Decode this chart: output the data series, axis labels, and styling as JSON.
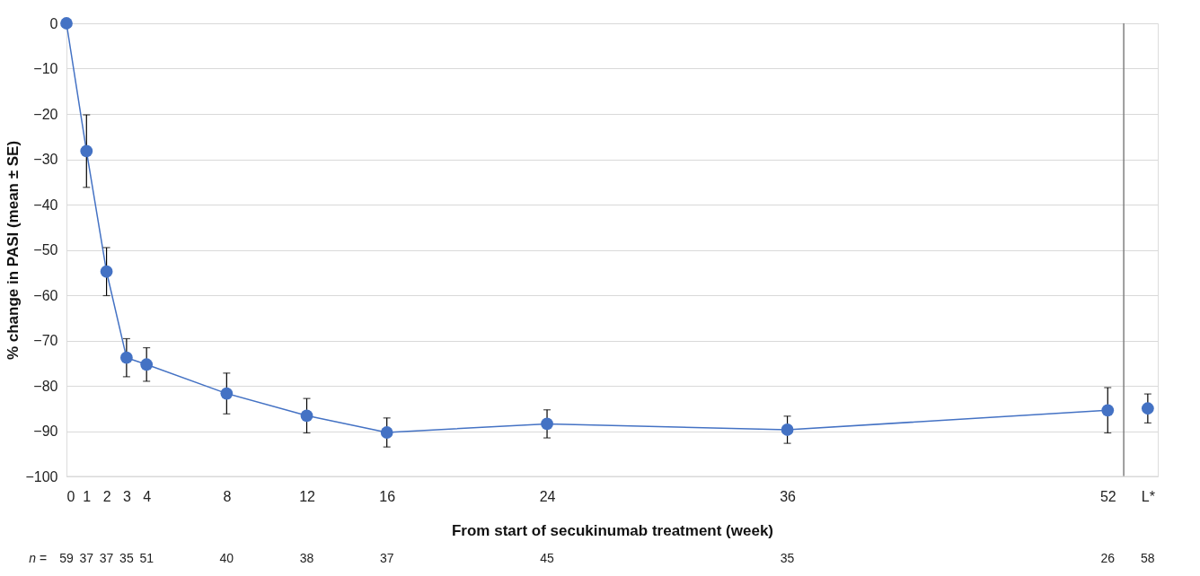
{
  "chart_data": {
    "type": "line",
    "xlabel": "From start of secukinumab treatment (week)",
    "ylabel": "% change in PASI (mean ± SE)",
    "xlim": [
      0,
      54.5
    ],
    "xticks": [
      0,
      1,
      2,
      3,
      4,
      8,
      12,
      16,
      24,
      36,
      52,
      {
        "value": 54,
        "label": "L*"
      }
    ],
    "ylim": [
      -100,
      0
    ],
    "yticks": [
      -100,
      -90,
      -80,
      -70,
      -60,
      -50,
      -40,
      -30,
      -20,
      -10,
      0
    ],
    "grid": "y",
    "marker": "circle",
    "line_style": "solid",
    "series": [
      {
        "color": "#4472c4",
        "x": [
          0,
          1,
          2,
          3,
          4,
          8,
          12,
          16,
          24,
          36,
          52
        ],
        "values": [
          0,
          -28.2,
          -54.8,
          -73.8,
          -75.3,
          -81.7,
          -86.6,
          -90.3,
          -88.4,
          -89.7,
          -85.4
        ],
        "errors": [
          null,
          8,
          5.3,
          4.2,
          3.7,
          4.5,
          3.8,
          3.2,
          3.1,
          3,
          5
        ]
      },
      {
        "type": "scatter",
        "color": "#4472c4",
        "x": [
          54
        ],
        "values": [
          -85.0
        ],
        "errors": [
          3.2
        ]
      }
    ],
    "ref_lines": [
      {
        "axis": "x",
        "value": 52.8,
        "color": "#808080"
      }
    ],
    "annotations": [
      "n =",
      "59",
      "37",
      "37",
      "35",
      "51",
      "40",
      "38",
      "37",
      "45",
      "35",
      "26",
      "58"
    ]
  }
}
